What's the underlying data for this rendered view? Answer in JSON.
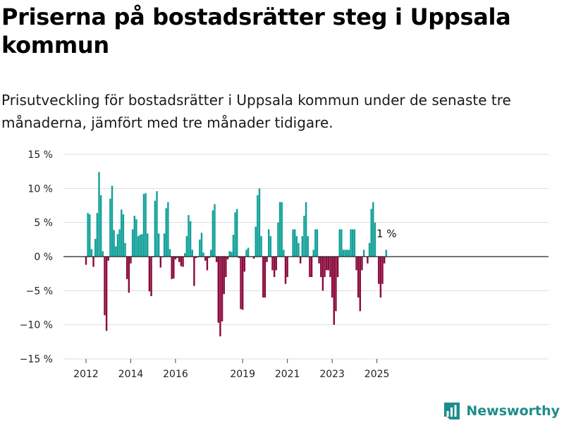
{
  "title": "Priserna på bostadsrätter steg i Uppsala kommun",
  "subtitle": "Prisutveckling för bostadsrätter i Uppsala kommun under de senaste tre månaderna, jämfört med tre månader tidigare.",
  "brand": {
    "name": "Newsworthy",
    "logo_icon": "bar-chart-logo-icon"
  },
  "colors": {
    "positive": "#13a19a",
    "negative": "#8b0a3c",
    "grid": "#dddddd",
    "zero_line": "#222222",
    "brand": "#1e8c8c"
  },
  "chart_data": {
    "type": "bar",
    "title": "Priserna på bostadsrätter steg i Uppsala kommun",
    "subtitle": "Prisutveckling för bostadsrätter i Uppsala kommun under de senaste tre månaderna, jämfört med tre månader tidigare.",
    "x_unit": "month",
    "x_start": "2012-01",
    "values": [
      -1.2,
      6.4,
      6.2,
      1.1,
      -1.5,
      2.6,
      6.4,
      12.4,
      9.0,
      0.8,
      -8.6,
      -10.9,
      -0.6,
      8.5,
      10.4,
      3.9,
      1.5,
      3.3,
      4.0,
      6.9,
      6.2,
      2.0,
      -3.3,
      -5.3,
      -1.0,
      4.0,
      6.0,
      5.5,
      3.0,
      3.2,
      3.3,
      9.2,
      9.3,
      3.4,
      -5.1,
      -5.8,
      -0.1,
      8.2,
      9.6,
      3.4,
      -1.6,
      -0.1,
      3.4,
      7.1,
      8.0,
      1.1,
      -3.3,
      -3.2,
      -0.4,
      -0.2,
      -0.8,
      -1.4,
      -1.5,
      0.5,
      3.0,
      6.1,
      5.2,
      1.0,
      -4.3,
      -0.2,
      -0.1,
      2.5,
      3.5,
      0.6,
      -0.6,
      -2.0,
      -0.2,
      1.0,
      6.8,
      7.7,
      -0.8,
      -9.7,
      -11.7,
      -9.5,
      -5.5,
      -3.0,
      -0.4,
      0.8,
      0.7,
      3.2,
      6.5,
      7.0,
      -0.2,
      -7.7,
      -7.8,
      -2.2,
      1.0,
      1.3,
      0,
      0,
      -0.3,
      4.4,
      9.0,
      10.0,
      3.0,
      -6.0,
      -6.0,
      -0.8,
      4.0,
      3.0,
      -2.0,
      -3.0,
      -2.0,
      5.0,
      8.0,
      8.0,
      1.0,
      -4.0,
      -3.0,
      0,
      0,
      4.0,
      4.0,
      3.0,
      2.0,
      -1.0,
      3.0,
      6.0,
      8.0,
      3.0,
      -3.0,
      -3.0,
      1.0,
      4.0,
      4.0,
      -1.0,
      -3.0,
      -5.0,
      -3.0,
      -2.0,
      -2.0,
      -3.0,
      -6.0,
      -10.0,
      -8.0,
      -3.0,
      4.0,
      4.0,
      1.0,
      1.0,
      1.0,
      1.0,
      4.0,
      4.0,
      4.0,
      -2.0,
      -6.0,
      -8.0,
      -2.0,
      1.0,
      0,
      -1.0,
      2.0,
      7.0,
      8.0,
      5.0,
      0,
      -4.0,
      -6.0,
      -4.0,
      -1.0,
      1.0
    ],
    "x_tick_labels": [
      "2012",
      "2014",
      "2016",
      "2019",
      "2021",
      "2023",
      "2025"
    ],
    "x_tick_years": [
      2012,
      2014,
      2016,
      2019,
      2021,
      2023,
      2025
    ],
    "y_ticks": [
      15,
      10,
      5,
      0,
      -5,
      -10,
      -15
    ],
    "y_tick_labels": [
      "15 %",
      "10 %",
      "5 %",
      "0 %",
      "−5 %",
      "−10 %",
      "−15 %"
    ],
    "ylim": [
      -15,
      15
    ],
    "grid": true,
    "annotation": {
      "text": "1 %",
      "target": "last"
    },
    "series_colors": {
      "positive": "#13a19a",
      "negative": "#8b0a3c"
    }
  }
}
